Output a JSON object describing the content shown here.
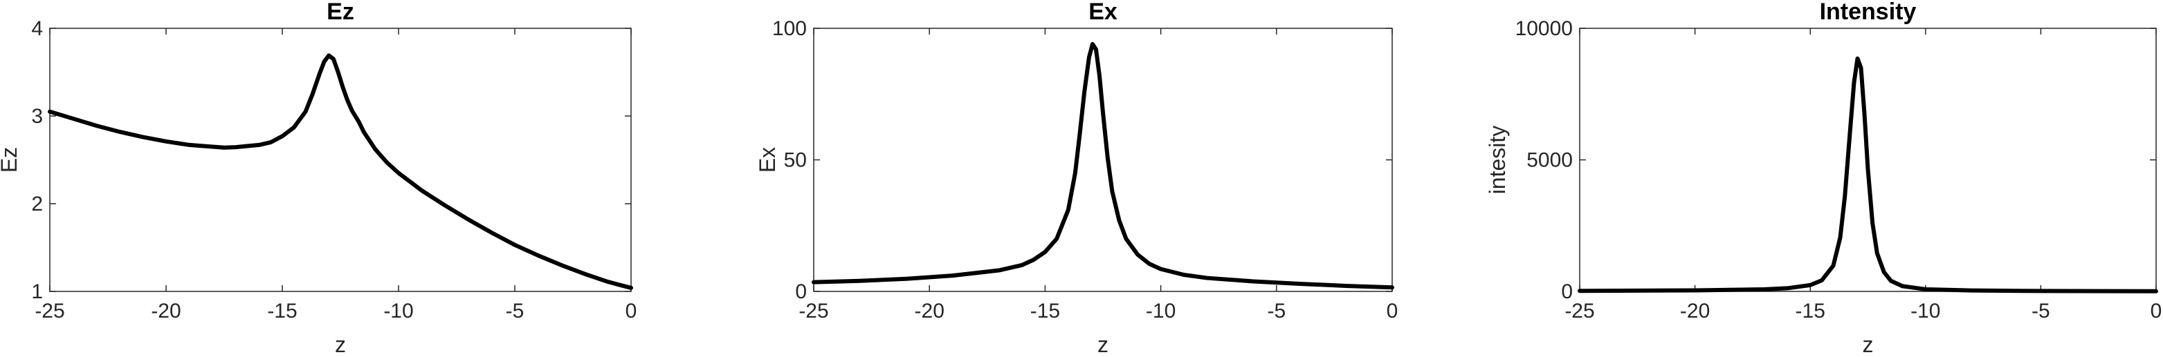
{
  "chart_data": [
    {
      "type": "line",
      "title": "Ez",
      "xlabel": "z",
      "ylabel": "Ez",
      "xlim": [
        -25,
        0
      ],
      "ylim": [
        1,
        4
      ],
      "xticks": [
        -25,
        -20,
        -15,
        -10,
        -5,
        0
      ],
      "yticks": [
        1,
        2,
        3,
        4
      ],
      "grid": false,
      "line_color": "#000000",
      "x": [
        -25,
        -24,
        -23,
        -22,
        -21,
        -20,
        -19,
        -18,
        -17.5,
        -17,
        -16,
        -15.5,
        -15,
        -14.5,
        -14,
        -13.7,
        -13.4,
        -13.2,
        -13.0,
        -12.8,
        -12.6,
        -12.4,
        -12.2,
        -12,
        -11.7,
        -11.5,
        -11,
        -10.5,
        -10,
        -9,
        -8,
        -7,
        -6,
        -5,
        -4,
        -3,
        -2,
        -1,
        0
      ],
      "y": [
        3.05,
        2.97,
        2.89,
        2.82,
        2.76,
        2.71,
        2.67,
        2.65,
        2.64,
        2.645,
        2.67,
        2.7,
        2.77,
        2.87,
        3.05,
        3.25,
        3.48,
        3.62,
        3.69,
        3.65,
        3.5,
        3.33,
        3.18,
        3.06,
        2.93,
        2.82,
        2.62,
        2.47,
        2.35,
        2.15,
        1.98,
        1.82,
        1.67,
        1.53,
        1.41,
        1.3,
        1.2,
        1.11,
        1.04
      ]
    },
    {
      "type": "line",
      "title": "Ex",
      "xlabel": "z",
      "ylabel": "Ex",
      "xlim": [
        -25,
        0
      ],
      "ylim": [
        0,
        100
      ],
      "xticks": [
        -25,
        -20,
        -15,
        -10,
        -5,
        0
      ],
      "yticks": [
        0,
        50,
        100
      ],
      "grid": false,
      "line_color": "#000000",
      "x": [
        -25,
        -23,
        -21,
        -19,
        -17,
        -16,
        -15.5,
        -15,
        -14.5,
        -14,
        -13.7,
        -13.5,
        -13.3,
        -13.1,
        -12.95,
        -12.8,
        -12.65,
        -12.5,
        -12.3,
        -12.1,
        -11.8,
        -11.5,
        -11,
        -10.5,
        -10,
        -9,
        -8,
        -6,
        -4,
        -2,
        0
      ],
      "y": [
        3.5,
        4.0,
        4.8,
        6.0,
        8.0,
        10.0,
        12.0,
        15.0,
        20.0,
        31.0,
        45.0,
        60.0,
        76.0,
        89.0,
        94.0,
        92.0,
        82.0,
        68.0,
        51.0,
        38.0,
        27.0,
        20.0,
        14.0,
        10.5,
        8.5,
        6.3,
        5.1,
        3.8,
        2.9,
        2.1,
        1.5
      ]
    },
    {
      "type": "line",
      "title": "Intensity",
      "xlabel": "z",
      "ylabel": "intesity",
      "xlim": [
        -25,
        0
      ],
      "ylim": [
        0,
        10000
      ],
      "xticks": [
        -25,
        -20,
        -15,
        -10,
        -5,
        0
      ],
      "yticks": [
        0,
        5000,
        10000
      ],
      "grid": false,
      "line_color": "#000000",
      "x": [
        -25,
        -20,
        -17,
        -16,
        -15,
        -14.5,
        -14,
        -13.7,
        -13.5,
        -13.3,
        -13.1,
        -12.95,
        -12.8,
        -12.65,
        -12.5,
        -12.3,
        -12.1,
        -11.8,
        -11.5,
        -11,
        -10,
        -8,
        -5,
        0
      ],
      "y": [
        20,
        40,
        80,
        120,
        240,
        420,
        980,
        2050,
        3600,
        5800,
        7950,
        8850,
        8500,
        6750,
        4650,
        2600,
        1450,
        730,
        400,
        200,
        80,
        35,
        15,
        5
      ]
    }
  ]
}
